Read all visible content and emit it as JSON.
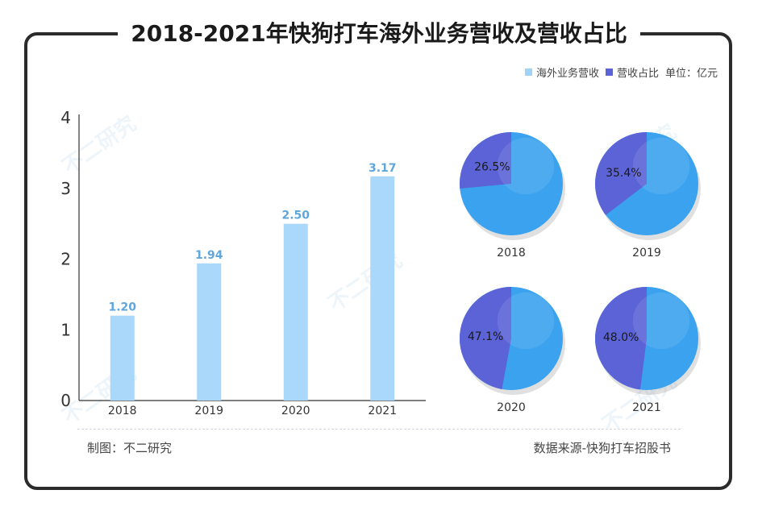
{
  "title": "2018-2021年快狗打车海外业务营收及营收占比",
  "legend": {
    "items": [
      {
        "label": "海外业务营收",
        "color": "#9fd3f8"
      },
      {
        "label": "营收占比",
        "color": "#5b63d6"
      }
    ],
    "unit": "单位：亿元"
  },
  "footer": {
    "left": "制图：不二研究",
    "right": "数据来源-快狗打车招股书"
  },
  "watermark": "不二研究",
  "chart_data": [
    {
      "type": "bar",
      "categories": [
        "2018",
        "2019",
        "2020",
        "2021"
      ],
      "values": [
        1.2,
        1.94,
        2.5,
        3.17
      ],
      "value_labels": [
        "1.20",
        "1.94",
        "2.50",
        "3.17"
      ],
      "yticks": [
        "0",
        "1",
        "2",
        "3",
        "4"
      ],
      "ylim": [
        0,
        4
      ],
      "bar_color": "#aad8fb",
      "label_color": "#5fa6dd"
    },
    {
      "type": "pie",
      "pies": [
        {
          "year": "2018",
          "share": 26.5,
          "label": "26.5%"
        },
        {
          "year": "2019",
          "share": 35.4,
          "label": "35.4%"
        },
        {
          "year": "2020",
          "share": 47.1,
          "label": "47.1%"
        },
        {
          "year": "2021",
          "share": 48.0,
          "label": "48.0%"
        }
      ],
      "colors": {
        "share": "#5b63d6",
        "rest": "#3aa2ee"
      }
    }
  ]
}
